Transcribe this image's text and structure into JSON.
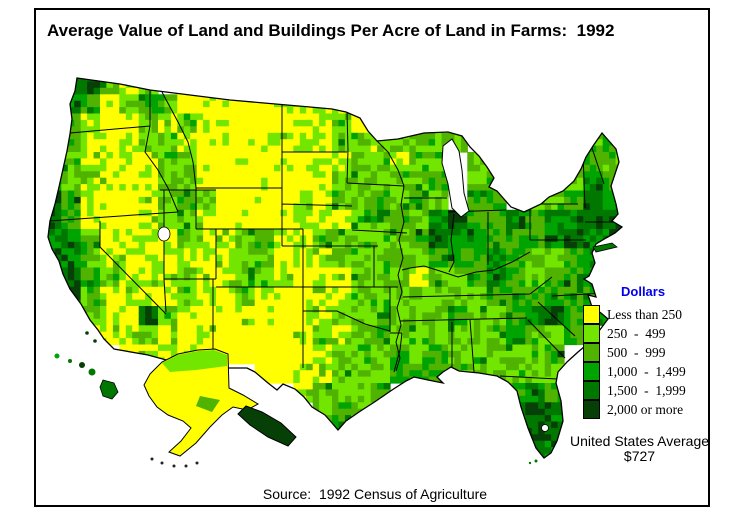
{
  "title": "Average Value of Land and Buildings Per Acre of Land in Farms:  1992",
  "legend": {
    "title": "Dollars",
    "classes": [
      {
        "label": "Less than 250",
        "color": "#FFFF00"
      },
      {
        "label": "250  -  499",
        "color": "#73E600"
      },
      {
        "label": "500  -  999",
        "color": "#4FB300"
      },
      {
        "label": "1,000  -  1,499",
        "color": "#00A400"
      },
      {
        "label": "1,500  -  1,999",
        "color": "#007800"
      },
      {
        "label": "2,000 or more",
        "color": "#064006"
      }
    ]
  },
  "annotations": {
    "us_average_label": "United States Average",
    "us_average_value": "$727",
    "source": "Source:  1992 Census of Agriculture"
  },
  "chart_data": {
    "type": "choropleth-map",
    "title": "Average Value of Land and Buildings Per Acre of Land in Farms: 1992",
    "unit": "dollars per acre",
    "us_average": 727,
    "class_breaks": [
      0,
      250,
      500,
      1000,
      1500,
      2000
    ],
    "class_labels": [
      "Less than 250",
      "250 - 499",
      "500 - 999",
      "1,000 - 1,499",
      "1,500 - 1,999",
      "2,000 or more"
    ],
    "palette": [
      "#FFFF00",
      "#73E600",
      "#4FB300",
      "#00A400",
      "#007800",
      "#064006"
    ],
    "grid_bbox": [
      42,
      75,
      580,
      385
    ],
    "grid_columns": 30,
    "grid_rows": 20,
    "value_grid": [
      ".55212........................",
      ".430232000001111..............",
      "4310021210000112121...........",
      "5310122100011112212222......23",
      "521011220000101122122.22..2332",
      "421101220000001222223.23..3243",
      "531001232000011223232.33.22354",
      "531101221000011122324533434455",
      "442111121123112222235443334544",
      "542111111122011222223334322344",
      ".5321112112210112221223432 3343",
      ".5211112102100112222222333 3333",
      ".4210521001001122222232234 5333",
      ".5111210100001212322222242 23..",
      "....0111000000122232322222 3...",
      "...........0011222333222222 3..",
      ".............12223......343...",
      "..............232.......454...",
      "..............34.........55...",
      ".........................54..."
    ]
  }
}
